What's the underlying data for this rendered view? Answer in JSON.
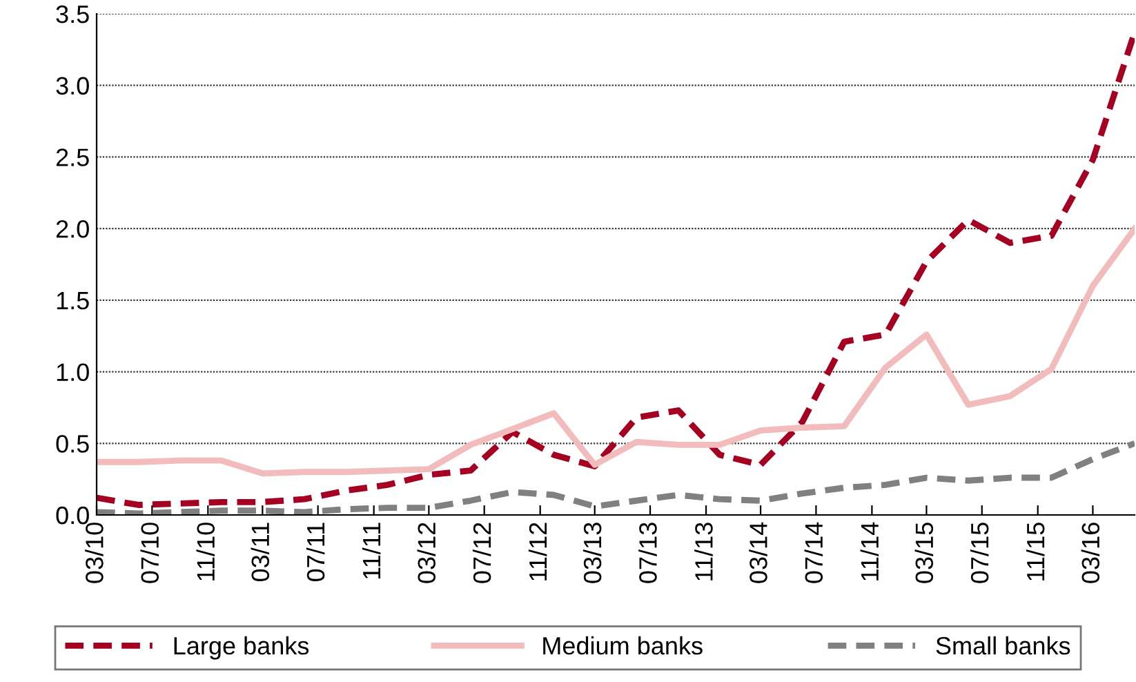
{
  "chart_data": {
    "type": "line",
    "x": [
      "2010-03",
      "2010-06",
      "2010-09",
      "2010-12",
      "2011-03",
      "2011-06",
      "2011-09",
      "2011-12",
      "2012-03",
      "2012-06",
      "2012-09",
      "2012-12",
      "2013-03",
      "2013-06",
      "2013-09",
      "2013-12",
      "2014-03",
      "2014-06",
      "2014-09",
      "2014-12",
      "2015-03",
      "2015-06",
      "2015-09",
      "2015-12",
      "2016-03",
      "2016-06"
    ],
    "series": [
      {
        "name": "Large banks",
        "color": "#a50021",
        "line_style": "dashed",
        "values": [
          0.12,
          0.07,
          0.08,
          0.09,
          0.09,
          0.11,
          0.17,
          0.21,
          0.28,
          0.31,
          0.58,
          0.42,
          0.34,
          0.68,
          0.73,
          0.42,
          0.35,
          0.65,
          1.21,
          1.26,
          1.77,
          2.06,
          1.9,
          1.95,
          2.48,
          3.37
        ]
      },
      {
        "name": "Medium banks",
        "color": "#f2bcbc",
        "line_style": "solid",
        "values": [
          0.37,
          0.37,
          0.38,
          0.38,
          0.29,
          0.3,
          0.3,
          0.31,
          0.32,
          0.49,
          0.6,
          0.71,
          0.35,
          0.51,
          0.49,
          0.49,
          0.59,
          0.61,
          0.62,
          1.03,
          1.26,
          0.77,
          0.83,
          1.02,
          1.6,
          2.0
        ]
      },
      {
        "name": "Small banks",
        "color": "#808080",
        "line_style": "dashed",
        "values": [
          0.02,
          0.01,
          0.02,
          0.03,
          0.03,
          0.02,
          0.04,
          0.05,
          0.05,
          0.1,
          0.16,
          0.14,
          0.06,
          0.1,
          0.14,
          0.11,
          0.1,
          0.15,
          0.19,
          0.21,
          0.26,
          0.24,
          0.26,
          0.26,
          0.39,
          0.5
        ]
      }
    ],
    "xlim": [
      "2010-03",
      "2016-06"
    ],
    "xticks": [
      {
        "value": "2010-03",
        "label": "03/10"
      },
      {
        "value": "2010-07",
        "label": "07/10"
      },
      {
        "value": "2010-11",
        "label": "11/10"
      },
      {
        "value": "2011-03",
        "label": "03/11"
      },
      {
        "value": "2011-07",
        "label": "07/11"
      },
      {
        "value": "2011-11",
        "label": "11/11"
      },
      {
        "value": "2012-03",
        "label": "03/12"
      },
      {
        "value": "2012-07",
        "label": "07/12"
      },
      {
        "value": "2012-11",
        "label": "11/12"
      },
      {
        "value": "2013-03",
        "label": "03/13"
      },
      {
        "value": "2013-07",
        "label": "07/13"
      },
      {
        "value": "2013-11",
        "label": "11/13"
      },
      {
        "value": "2014-03",
        "label": "03/14"
      },
      {
        "value": "2014-07",
        "label": "07/14"
      },
      {
        "value": "2014-11",
        "label": "11/14"
      },
      {
        "value": "2015-03",
        "label": "03/15"
      },
      {
        "value": "2015-07",
        "label": "07/15"
      },
      {
        "value": "2015-11",
        "label": "11/15"
      },
      {
        "value": "2016-03",
        "label": "03/16"
      }
    ],
    "ylim": [
      0,
      3.5
    ],
    "yticks": [
      {
        "value": 0,
        "label": "0.0"
      },
      {
        "value": 0.5,
        "label": "0.5"
      },
      {
        "value": 1,
        "label": "1.0"
      },
      {
        "value": 1.5,
        "label": "1.5"
      },
      {
        "value": 2,
        "label": "2.0"
      },
      {
        "value": 2.5,
        "label": "2.5"
      },
      {
        "value": 3,
        "label": "3.0"
      },
      {
        "value": 3.5,
        "label": "3.5"
      }
    ],
    "grid": "y",
    "legend": "bottom"
  }
}
